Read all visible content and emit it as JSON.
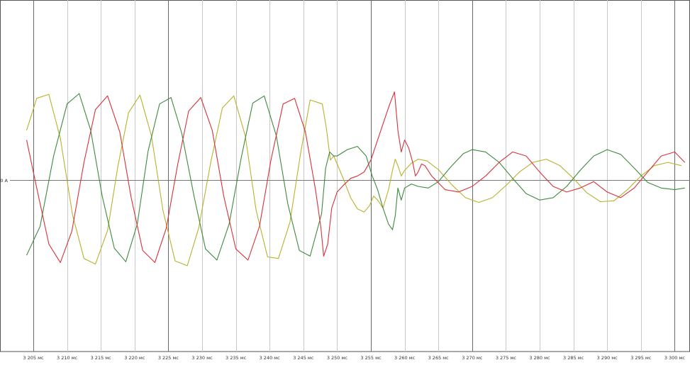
{
  "chart_data": {
    "type": "line",
    "title": "",
    "xlabel": "",
    "ylabel": "",
    "x_unit": "мс",
    "xlim": [
      3204.0,
      3301.5
    ],
    "ylim": [
      -2.06,
      2.06
    ],
    "grid": true,
    "legend": "none",
    "y_zero_label": "0 A",
    "x_ticks": [
      {
        "value": 3205,
        "label": "3 205 мс"
      },
      {
        "value": 3210,
        "label": "3 210 мс"
      },
      {
        "value": 3215,
        "label": "3 215 мс"
      },
      {
        "value": 3220,
        "label": "3 220 мс"
      },
      {
        "value": 3225,
        "label": "3 225 мс"
      },
      {
        "value": 3230,
        "label": "3 230 мс"
      },
      {
        "value": 3235,
        "label": "3 235 мс"
      },
      {
        "value": 3240,
        "label": "3 240 мс"
      },
      {
        "value": 3245,
        "label": "3 245 мс"
      },
      {
        "value": 3250,
        "label": "3 250 мс"
      },
      {
        "value": 3255,
        "label": "3 255 мс"
      },
      {
        "value": 3260,
        "label": "3 260 мс"
      },
      {
        "value": 3265,
        "label": "3 265 мс"
      },
      {
        "value": 3270,
        "label": "3 270 мс"
      },
      {
        "value": 3275,
        "label": "3 275 мс"
      },
      {
        "value": 3280,
        "label": "3 280 мс"
      },
      {
        "value": 3285,
        "label": "3 285 мс"
      },
      {
        "value": 3290,
        "label": "3 290 мс"
      },
      {
        "value": 3295,
        "label": "3 295 мс"
      },
      {
        "value": 3300,
        "label": "3 300 мс"
      }
    ],
    "major_gridlines": [
      3205,
      3225,
      3255,
      3270,
      3300
    ],
    "series": [
      {
        "color": "#b9b22c",
        "x": [
          3204.0,
          3205.5,
          3207.3,
          3209.0,
          3210.8,
          3212.5,
          3214.2,
          3216.0,
          3217.5,
          3219.1,
          3220.8,
          3222.5,
          3224.2,
          3226.0,
          3227.8,
          3229.5,
          3231.3,
          3233.0,
          3234.7,
          3236.4,
          3238.0,
          3239.7,
          3241.3,
          3243.0,
          3244.6,
          3246.0,
          3247.8,
          3248.4,
          3249.0,
          3249.5,
          3250.0,
          3251.0,
          3252.0,
          3253.0,
          3254.0,
          3254.8,
          3255.4,
          3256.0,
          3256.8,
          3257.6,
          3258.2,
          3258.6,
          3259.0,
          3259.5,
          3260.0,
          3261.0,
          3262.0,
          3263.3,
          3265.0,
          3267.0,
          3269.0,
          3271.0,
          3273.0,
          3275.0,
          3277.0,
          3279.0,
          3281.0,
          3283.0,
          3285.0,
          3287.0,
          3289.0,
          3291.0,
          3293.0,
          3295.0,
          3297.0,
          3299.0,
          3301.0
        ],
        "y": [
          0.62,
          1.02,
          1.07,
          0.52,
          -0.43,
          -0.98,
          -1.05,
          -0.63,
          0.16,
          0.84,
          1.06,
          0.55,
          -0.38,
          -1.01,
          -1.07,
          -0.6,
          0.23,
          0.9,
          1.05,
          0.55,
          -0.38,
          -0.96,
          -0.98,
          -0.53,
          0.34,
          1.0,
          0.95,
          0.65,
          0.25,
          0.3,
          0.2,
          0.0,
          -0.22,
          -0.36,
          -0.4,
          -0.32,
          -0.2,
          -0.25,
          -0.35,
          -0.12,
          0.12,
          0.26,
          0.18,
          0.05,
          0.12,
          0.21,
          0.26,
          0.24,
          0.13,
          -0.06,
          -0.22,
          -0.28,
          -0.22,
          -0.07,
          0.1,
          0.22,
          0.26,
          0.18,
          0.02,
          -0.16,
          -0.27,
          -0.26,
          -0.12,
          0.05,
          0.18,
          0.22,
          0.18
        ]
      },
      {
        "color": "#3e8a3e",
        "x": [
          3204.0,
          3206.0,
          3208.0,
          3210.0,
          3211.8,
          3213.5,
          3215.2,
          3217.0,
          3218.7,
          3220.4,
          3222.0,
          3223.7,
          3225.4,
          3227.0,
          3228.8,
          3230.5,
          3232.2,
          3234.0,
          3235.8,
          3237.5,
          3239.2,
          3241.0,
          3242.7,
          3244.4,
          3246.0,
          3247.7,
          3248.3,
          3248.9,
          3249.5,
          3250.0,
          3251.5,
          3253.0,
          3254.3,
          3255.2,
          3256.0,
          3256.8,
          3257.6,
          3258.2,
          3258.6,
          3259.0,
          3259.5,
          3260.0,
          3261.0,
          3262.0,
          3263.5,
          3265.0,
          3266.8,
          3268.7,
          3270.0,
          3272.0,
          3274.0,
          3276.0,
          3278.0,
          3280.0,
          3282.0,
          3284.0,
          3286.0,
          3288.0,
          3290.0,
          3292.0,
          3294.0,
          3296.0,
          3298.0,
          3300.0,
          3301.5
        ],
        "y": [
          -0.94,
          -0.58,
          0.3,
          0.95,
          1.08,
          0.62,
          -0.2,
          -0.85,
          -1.02,
          -0.55,
          0.36,
          0.95,
          1.03,
          0.58,
          -0.2,
          -0.86,
          -1.0,
          -0.55,
          0.28,
          0.96,
          1.05,
          0.55,
          -0.3,
          -0.88,
          -0.95,
          -0.42,
          0.15,
          0.35,
          0.3,
          0.3,
          0.38,
          0.42,
          0.3,
          0.05,
          -0.12,
          -0.35,
          -0.55,
          -0.62,
          -0.45,
          -0.1,
          -0.25,
          -0.1,
          -0.05,
          -0.08,
          -0.1,
          -0.02,
          0.16,
          0.33,
          0.38,
          0.35,
          0.22,
          0.02,
          -0.17,
          -0.25,
          -0.22,
          -0.08,
          0.12,
          0.3,
          0.38,
          0.32,
          0.15,
          -0.03,
          -0.1,
          -0.12,
          -0.1
        ]
      },
      {
        "color": "#d8313a",
        "x": [
          3204.0,
          3205.5,
          3207.3,
          3209.0,
          3210.7,
          3212.5,
          3214.2,
          3216.0,
          3217.8,
          3219.5,
          3221.2,
          3223.0,
          3224.7,
          3226.4,
          3228.0,
          3229.8,
          3231.5,
          3233.2,
          3235.0,
          3236.8,
          3238.5,
          3240.2,
          3242.0,
          3243.7,
          3245.3,
          3246.8,
          3247.6,
          3248.0,
          3248.6,
          3249.2,
          3250.0,
          3251.0,
          3252.0,
          3253.0,
          3254.0,
          3255.0,
          3256.2,
          3257.2,
          3257.8,
          3258.5,
          3259.0,
          3259.5,
          3260.0,
          3260.6,
          3261.2,
          3261.6,
          3262.0,
          3262.5,
          3263.0,
          3264.0,
          3266.0,
          3268.0,
          3270.0,
          3272.0,
          3274.0,
          3276.0,
          3278.0,
          3280.0,
          3282.0,
          3284.0,
          3286.0,
          3288.0,
          3290.0,
          3292.0,
          3294.0,
          3296.0,
          3298.0,
          3300.0,
          3301.5
        ],
        "y": [
          0.5,
          -0.1,
          -0.8,
          -1.03,
          -0.64,
          0.22,
          0.88,
          1.05,
          0.6,
          -0.22,
          -0.88,
          -1.03,
          -0.6,
          0.2,
          0.86,
          1.03,
          0.62,
          -0.2,
          -0.86,
          -1.0,
          -0.58,
          0.25,
          0.95,
          1.02,
          0.6,
          -0.12,
          -0.6,
          -0.95,
          -0.8,
          -0.35,
          -0.15,
          -0.06,
          0.02,
          0.05,
          0.1,
          0.25,
          0.55,
          0.8,
          0.95,
          1.1,
          0.62,
          0.35,
          0.5,
          0.4,
          0.22,
          0.05,
          0.1,
          0.2,
          0.18,
          0.05,
          -0.12,
          -0.15,
          -0.08,
          0.05,
          0.22,
          0.35,
          0.3,
          0.1,
          -0.08,
          -0.15,
          -0.1,
          -0.02,
          -0.15,
          -0.22,
          -0.1,
          0.1,
          0.3,
          0.35,
          0.22
        ]
      }
    ]
  }
}
